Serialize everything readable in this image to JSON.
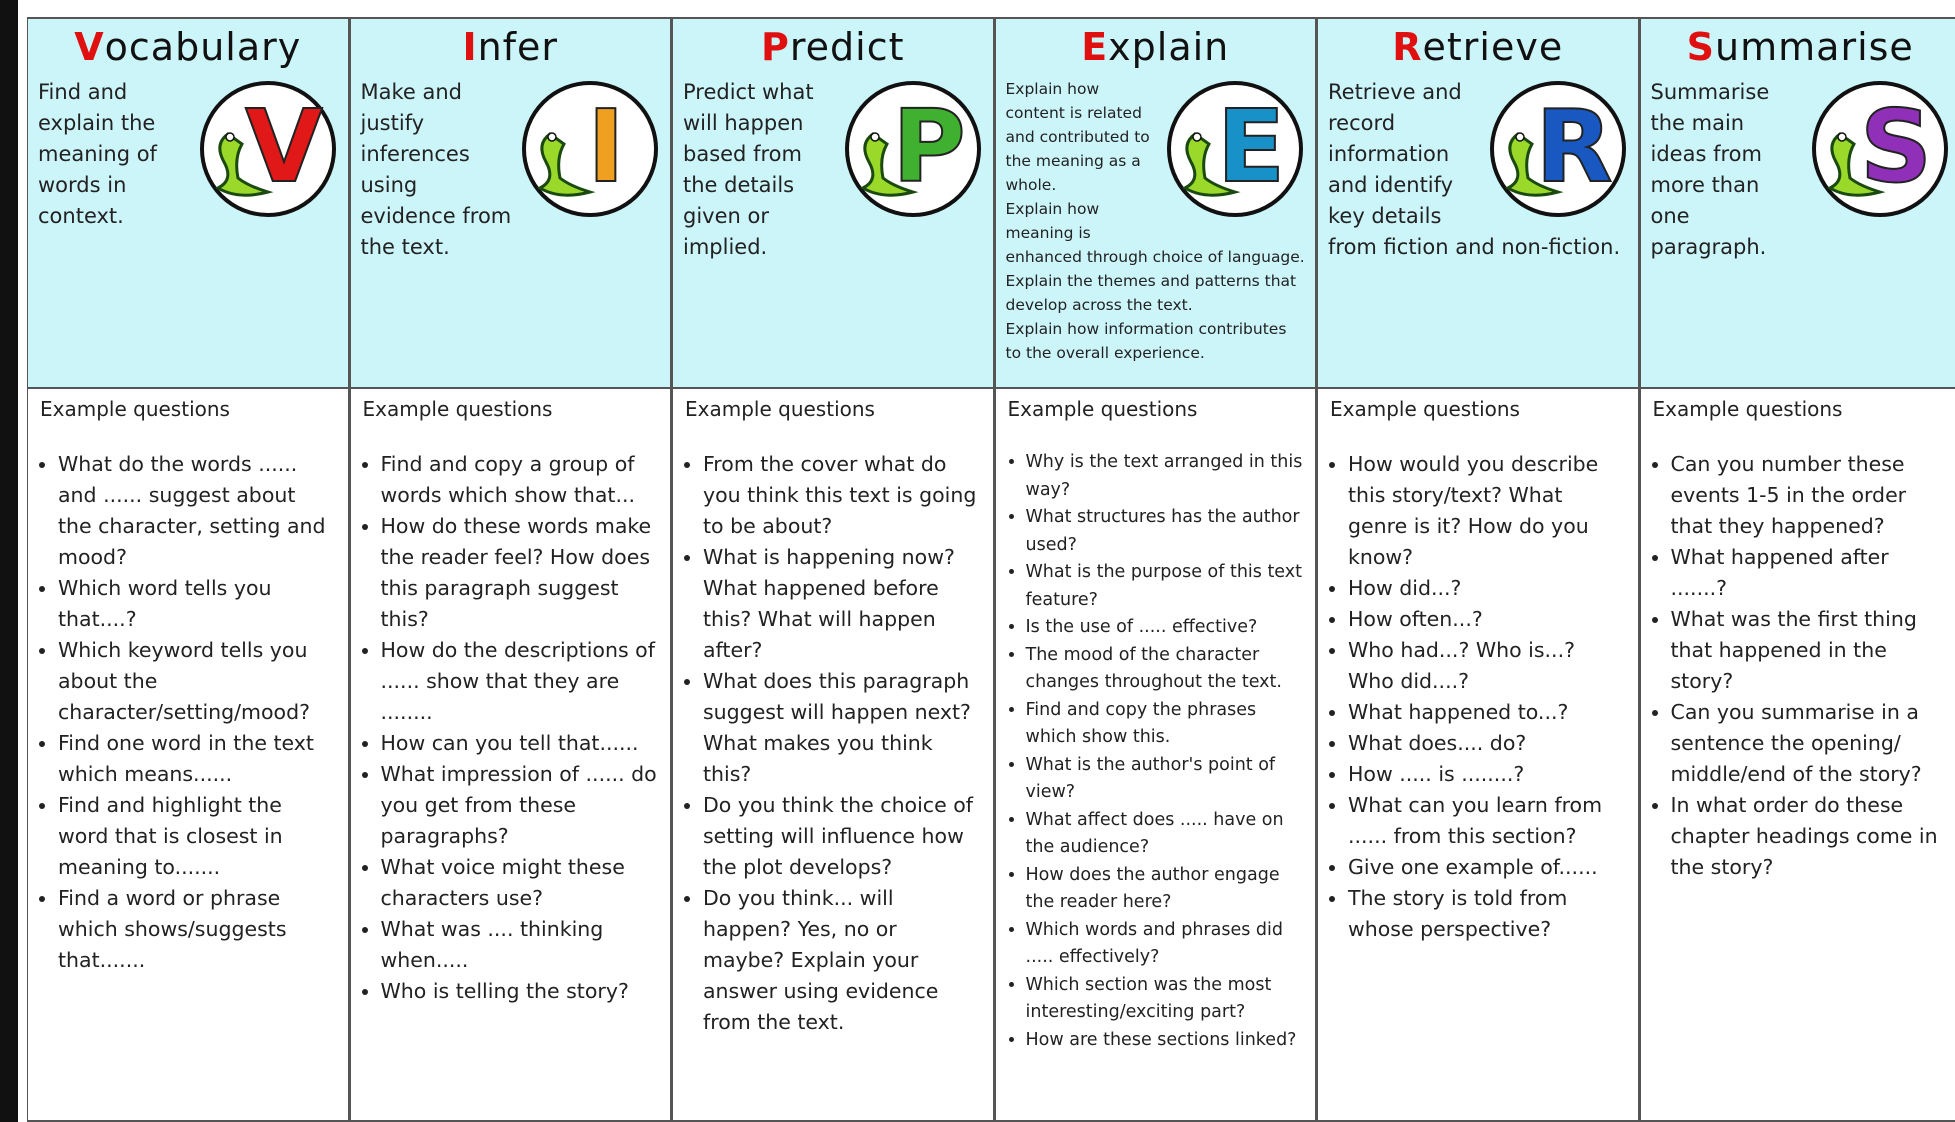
{
  "columns": [
    {
      "title": "Vocabulary",
      "icon_letter": "V",
      "description": [
        "Find and explain the meaning of words in context."
      ],
      "questions_heading": "Example questions",
      "questions": [
        "What do the words ...... and ...... suggest about the character, setting and mood?",
        "Which word tells you that....?",
        "Which keyword tells you about the character/setting/mood?",
        "Find one word in the text which means......",
        "Find and highlight the word that is closest in meaning to.......",
        "Find a word or phrase which shows/suggests that......."
      ]
    },
    {
      "title": "Infer",
      "icon_letter": "I",
      "description": [
        "Make and justify inferences using evidence from the text."
      ],
      "questions_heading": "Example questions",
      "questions": [
        "Find and copy a group of words which show that...",
        "How do these words make the reader feel? How does this paragraph suggest this?",
        "How do the descriptions of ...... show that they are ........",
        "How can you tell that......",
        "What impression of ...... do you get from these paragraphs?",
        "What voice might these characters use?",
        "What was .... thinking when.....",
        "Who is telling the story?"
      ]
    },
    {
      "title": "Predict",
      "icon_letter": "P",
      "description": [
        "Predict what will happen based from the details given or implied."
      ],
      "questions_heading": "Example questions",
      "questions": [
        "From the cover what do you think this text is going to be about?",
        "What is happening now? What happened before this? What will happen after?",
        "What does this paragraph suggest will happen next? What makes you think this?",
        "Do you think the choice of setting will influence how the plot develops?",
        "Do you think... will happen? Yes, no or maybe? Explain your answer using evidence from the text."
      ]
    },
    {
      "title": "Explain",
      "icon_letter": "E",
      "description": [
        "Explain how content is related and contributed to the meaning as a whole.",
        "Explain how meaning is enhanced through choice of language.",
        "Explain the themes and patterns that develop across the text.",
        "Explain how information contributes to the overall experience."
      ],
      "questions_heading": "Example questions",
      "questions": [
        "Why is the text arranged in this way?",
        "What structures has the author used?",
        "What is the purpose of this text feature?",
        "Is the use of ..... effective?",
        "The mood of the character changes throughout the text.",
        "Find and copy the phrases which show this.",
        "What is the author's point of view?",
        "What affect does ..... have on the audience?",
        "How does the author engage the reader here?",
        "Which words and phrases did ..... effectively?",
        "Which section was the most interesting/exciting part?",
        "How are these sections linked?"
      ]
    },
    {
      "title": "Retrieve",
      "icon_letter": "R",
      "description": [
        "Retrieve and record information and identify key details from fiction and non-fiction."
      ],
      "questions_heading": "Example questions",
      "questions": [
        "How would you describe this story/text? What genre is it? How do you know?",
        "How did...?",
        "How often...?",
        "Who had...? Who is...? Who did....?",
        "What happened to...?",
        "What does.... do?",
        "How ..... is ........?",
        "What can you learn from ...... from this section?",
        "Give one example of......",
        "The story is told from whose perspective?"
      ]
    },
    {
      "title": "Summarise",
      "icon_letter": "S",
      "description": [
        "Summarise the main ideas from more than one paragraph."
      ],
      "questions_heading": "Example questions",
      "questions": [
        "Can you number these events 1-5 in the order that they happened?",
        "What happened after .......?",
        "What was the first thing that happened in the story?",
        "Can you summarise in a sentence the opening/ middle/end of the story?",
        "In what order do these chapter headings come in the story?"
      ]
    }
  ]
}
